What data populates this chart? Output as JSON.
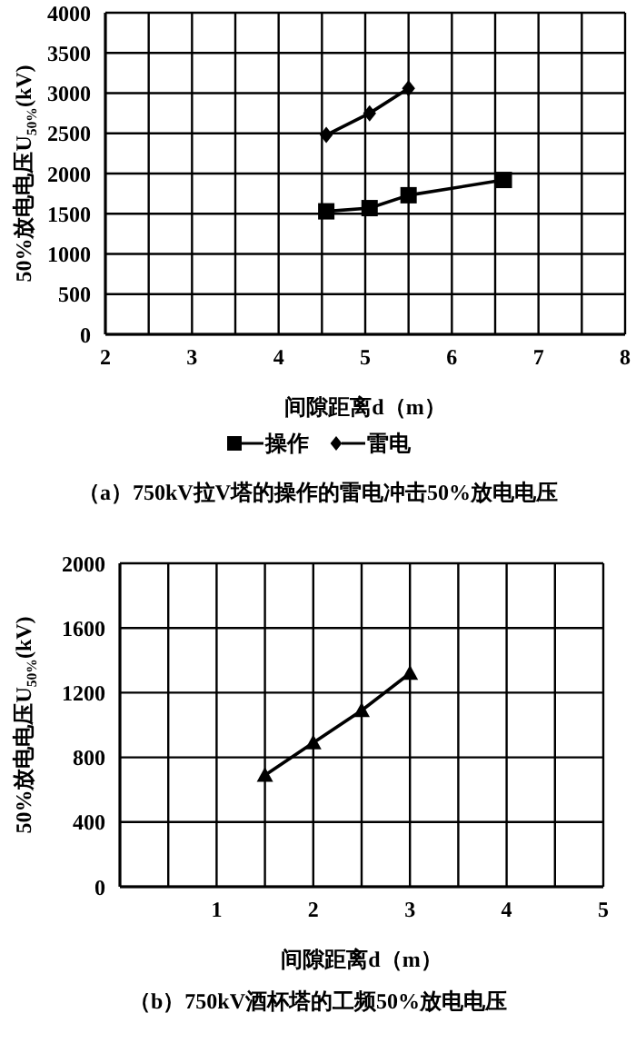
{
  "chart_data": [
    {
      "type": "line",
      "title": "（a）750kV拉V塔的操作的雷电冲击50%放电电压",
      "xlabel": "间隙距离d（m）",
      "ylabel": "50%放电电压U$_{50%}$(kV)",
      "series": [
        {
          "name": "操作",
          "color": "#000000",
          "marker": "square",
          "x": [
            4.55,
            5.05,
            5.5,
            6.6
          ],
          "values": [
            1530,
            1570,
            1730,
            1920
          ]
        },
        {
          "name": "雷电",
          "color": "#000000",
          "marker": "diamond",
          "x": [
            4.55,
            5.05,
            5.5
          ],
          "values": [
            2480,
            2750,
            3060
          ]
        }
      ],
      "xlim": [
        2,
        8
      ],
      "xticks": [
        2,
        {
          "value": 2.5,
          "label": null
        },
        3,
        {
          "value": 3.5,
          "label": null
        },
        4,
        {
          "value": 4.5,
          "label": null
        },
        5,
        {
          "value": 5.5,
          "label": null
        },
        6,
        {
          "value": 6.5,
          "label": null
        },
        7,
        {
          "value": 7.5,
          "label": null
        },
        8
      ],
      "ylim": [
        0,
        4000
      ],
      "yticks": [
        0,
        500,
        1000,
        1500,
        2000,
        2500,
        3000,
        3500,
        4000
      ],
      "grid": true,
      "legend": "bottom"
    },
    {
      "type": "line",
      "title": "（b）750kV酒杯塔的工频50%放电电压",
      "xlabel": "间隙距离d（m）",
      "ylabel": "50%放电电压U$_{50%}$(kV)",
      "series": [
        {
          "color": "#000000",
          "marker": "triangle",
          "x": [
            1.5,
            2,
            2.5,
            3
          ],
          "values": [
            690,
            890,
            1090,
            1320
          ]
        }
      ],
      "xlim": [
        0,
        5
      ],
      "xticks": [
        {
          "value": 0,
          "label": null
        },
        {
          "value": 0.5,
          "label": null
        },
        1,
        {
          "value": 1.5,
          "label": null
        },
        2,
        {
          "value": 2.5,
          "label": null
        },
        3,
        {
          "value": 3.5,
          "label": null
        },
        4,
        {
          "value": 4.5,
          "label": null
        },
        5
      ],
      "ylim": [
        0,
        2000
      ],
      "yticks": [
        0,
        400,
        800,
        1200,
        1600,
        2000
      ],
      "grid": true,
      "legend": false
    }
  ]
}
